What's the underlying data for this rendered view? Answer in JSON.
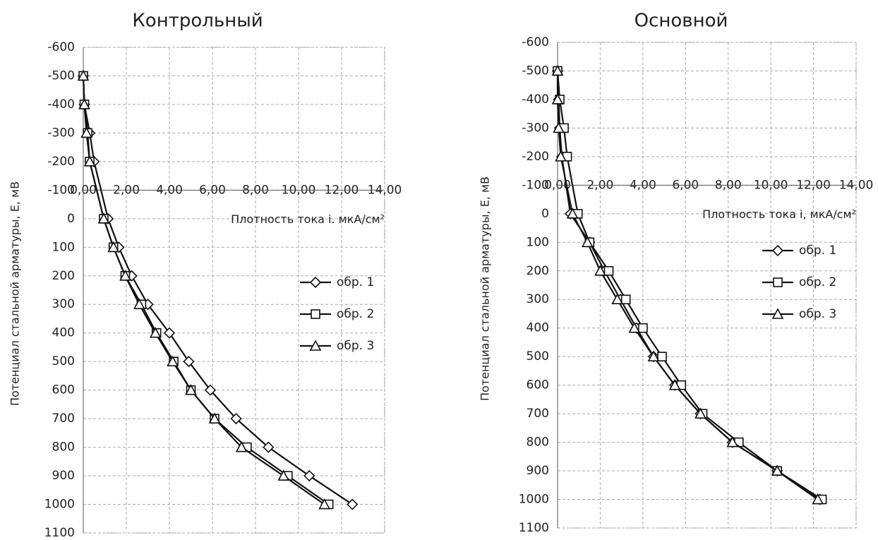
{
  "chart_data": [
    {
      "type": "line",
      "title": "Контрольный",
      "x_label": "Плотность тока i. мкА/см²",
      "y_label": "Потенциал стальной арматуры, E, мВ",
      "xlim": [
        0,
        14
      ],
      "ylim": [
        -600,
        1100
      ],
      "y_reversed": true,
      "x_axis_at": -100,
      "grid": true,
      "legend": "right",
      "xticks": [
        {
          "value": 0,
          "label": "0,00"
        },
        {
          "value": 2,
          "label": "2,00"
        },
        {
          "value": 4,
          "label": "4,00"
        },
        {
          "value": 6,
          "label": "6,00"
        },
        {
          "value": 8,
          "label": "8,00"
        },
        {
          "value": 10,
          "label": "10,00"
        },
        {
          "value": 12,
          "label": "12,00"
        },
        {
          "value": 14,
          "label": "14,00"
        }
      ],
      "yticks": [
        -600,
        -500,
        -400,
        -300,
        -200,
        -100,
        0,
        100,
        200,
        300,
        400,
        500,
        600,
        700,
        800,
        900,
        1000,
        1100
      ],
      "y": [
        -500,
        -400,
        -300,
        -200,
        0,
        100,
        200,
        300,
        400,
        500,
        600,
        700,
        800,
        900,
        1000
      ],
      "series": [
        {
          "name": "обр. 1",
          "color": "#111111",
          "marker": "diamond",
          "x": [
            0,
            0.05,
            0.3,
            0.5,
            1.15,
            1.65,
            2.25,
            3.0,
            4.0,
            4.9,
            5.9,
            7.1,
            8.6,
            10.5,
            12.5
          ]
        },
        {
          "name": "обр. 2",
          "color": "#111111",
          "marker": "square",
          "x": [
            0,
            0.05,
            0.2,
            0.3,
            0.95,
            1.4,
            1.95,
            2.7,
            3.4,
            4.2,
            5.0,
            6.1,
            7.6,
            9.5,
            11.4
          ]
        },
        {
          "name": "обр. 3",
          "color": "#111111",
          "marker": "triangle",
          "x": [
            0,
            0.05,
            0.15,
            0.3,
            0.95,
            1.4,
            1.95,
            2.6,
            3.35,
            4.15,
            5.0,
            6.1,
            7.35,
            9.3,
            11.2
          ]
        }
      ]
    },
    {
      "type": "line",
      "title": "Основной",
      "x_label": "Плотность тока i, мкА/см²",
      "y_label": "Потенциал стальной арматуры, E, мВ",
      "xlim": [
        0,
        14
      ],
      "ylim": [
        -600,
        1100
      ],
      "y_reversed": true,
      "x_axis_at": -100,
      "grid": true,
      "legend": "right",
      "xticks": [
        {
          "value": 0,
          "label": "0,00"
        },
        {
          "value": 2,
          "label": "2,00"
        },
        {
          "value": 4,
          "label": "4,00"
        },
        {
          "value": 6,
          "label": "6,00"
        },
        {
          "value": 8,
          "label": "8,00"
        },
        {
          "value": 10,
          "label": "10,00"
        },
        {
          "value": 12,
          "label": "12,00"
        },
        {
          "value": 14,
          "label": "14,00"
        }
      ],
      "yticks": [
        -600,
        -500,
        -400,
        -300,
        -200,
        -100,
        0,
        100,
        200,
        300,
        400,
        500,
        600,
        700,
        800,
        900,
        1000,
        1100
      ],
      "y": [
        -500,
        -400,
        -300,
        -200,
        0,
        100,
        200,
        300,
        400,
        500,
        600,
        700,
        800,
        900,
        1000
      ],
      "series": [
        {
          "name": "обр. 1",
          "color": "#111111",
          "marker": "diamond",
          "x": [
            0,
            0.05,
            0.1,
            0.2,
            0.6,
            1.5,
            2.2,
            2.95,
            3.7,
            4.5,
            5.5,
            6.7,
            8.2,
            10.3,
            12.3
          ]
        },
        {
          "name": "обр. 2",
          "color": "#111111",
          "marker": "square",
          "x": [
            0,
            0.1,
            0.3,
            0.45,
            0.95,
            1.5,
            2.4,
            3.2,
            4.0,
            4.9,
            5.8,
            6.8,
            8.5,
            10.3,
            12.4
          ]
        },
        {
          "name": "обр. 3",
          "color": "#111111",
          "marker": "triangle",
          "x": [
            0,
            0,
            0.05,
            0.15,
            0.7,
            1.4,
            2.0,
            2.8,
            3.6,
            4.5,
            5.5,
            6.7,
            8.2,
            10.3,
            12.2
          ]
        }
      ]
    }
  ]
}
